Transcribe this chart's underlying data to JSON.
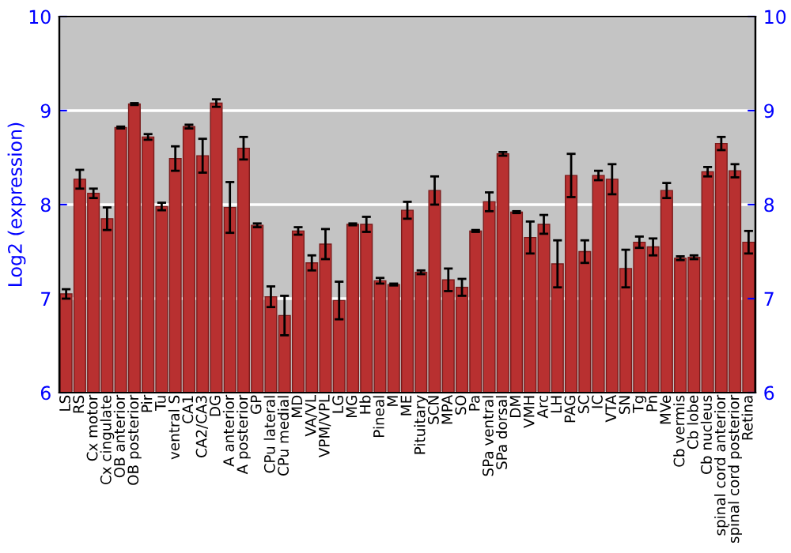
{
  "chart_data": {
    "type": "bar",
    "ylabel": "Log2 (expression)",
    "categories": [
      "LS",
      "RS",
      "Cx motor",
      "Cx cingulate",
      "OB anterior",
      "OB posterior",
      "Pir",
      "Tu",
      "ventral S",
      "CA1",
      "CA2/CA3",
      "DG",
      "A anterior",
      "A posterior",
      "GP",
      "CPu lateral",
      "CPu medial",
      "MD",
      "VA/VL",
      "VPM/VPL",
      "LG",
      "MG",
      "Hb",
      "Pineal",
      "M",
      "ME",
      "Pituitary",
      "SCN",
      "MPA",
      "SO",
      "Pa",
      "SPa ventral",
      "SPa dorsal",
      "DM",
      "VMH",
      "Arc",
      "LH",
      "PAG",
      "SC",
      "IC",
      "VTA",
      "SN",
      "Tg",
      "Pn",
      "MVe",
      "Cb vermis",
      "Cb lobe",
      "Cb nucleus",
      "spinal cord anterior",
      "spinal cord posterior",
      "Retina"
    ],
    "values": [
      7.05,
      8.27,
      8.12,
      7.85,
      8.82,
      9.07,
      8.72,
      7.98,
      8.49,
      8.83,
      8.52,
      9.08,
      7.97,
      8.6,
      7.78,
      7.02,
      6.82,
      7.72,
      7.38,
      7.58,
      6.98,
      7.79,
      7.79,
      7.19,
      7.15,
      7.94,
      7.28,
      8.15,
      7.2,
      7.12,
      7.72,
      8.03,
      8.54,
      7.92,
      7.65,
      7.79,
      7.37,
      8.31,
      7.5,
      8.31,
      8.27,
      7.32,
      7.6,
      7.55,
      8.15,
      7.43,
      7.44,
      8.35,
      8.65,
      8.36,
      7.6
    ],
    "errors": [
      0.05,
      0.1,
      0.05,
      0.12,
      0.01,
      0.01,
      0.03,
      0.04,
      0.13,
      0.02,
      0.18,
      0.04,
      0.27,
      0.12,
      0.02,
      0.11,
      0.21,
      0.04,
      0.08,
      0.16,
      0.2,
      0.01,
      0.08,
      0.03,
      0.01,
      0.09,
      0.02,
      0.15,
      0.12,
      0.09,
      0.01,
      0.1,
      0.02,
      0.01,
      0.17,
      0.1,
      0.25,
      0.23,
      0.12,
      0.05,
      0.16,
      0.2,
      0.06,
      0.09,
      0.08,
      0.02,
      0.02,
      0.05,
      0.07,
      0.07,
      0.12
    ],
    "color": "#b83030",
    "ylim": [
      6,
      10
    ],
    "yticks": [
      6,
      7,
      8,
      9,
      10
    ],
    "y2lim": [
      6,
      10
    ],
    "y2ticks": [
      6,
      7,
      8,
      9,
      10
    ],
    "grid": "y",
    "legend": false
  }
}
